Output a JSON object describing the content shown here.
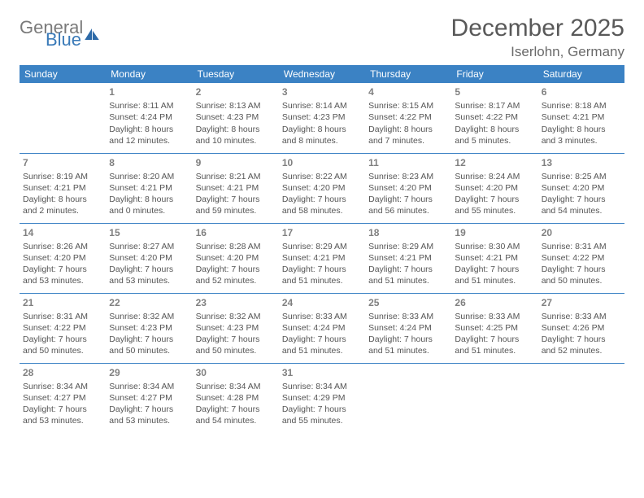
{
  "logo": {
    "text1": "General",
    "text2": "Blue"
  },
  "title": "December 2025",
  "location": "Iserlohn, Germany",
  "header_bg": "#3b82c4",
  "week_border": "#3b82c4",
  "days": [
    "Sunday",
    "Monday",
    "Tuesday",
    "Wednesday",
    "Thursday",
    "Friday",
    "Saturday"
  ],
  "weeks": [
    [
      null,
      {
        "n": "1",
        "sr": "8:11 AM",
        "ss": "4:24 PM",
        "dl": "8 hours and 12 minutes."
      },
      {
        "n": "2",
        "sr": "8:13 AM",
        "ss": "4:23 PM",
        "dl": "8 hours and 10 minutes."
      },
      {
        "n": "3",
        "sr": "8:14 AM",
        "ss": "4:23 PM",
        "dl": "8 hours and 8 minutes."
      },
      {
        "n": "4",
        "sr": "8:15 AM",
        "ss": "4:22 PM",
        "dl": "8 hours and 7 minutes."
      },
      {
        "n": "5",
        "sr": "8:17 AM",
        "ss": "4:22 PM",
        "dl": "8 hours and 5 minutes."
      },
      {
        "n": "6",
        "sr": "8:18 AM",
        "ss": "4:21 PM",
        "dl": "8 hours and 3 minutes."
      }
    ],
    [
      {
        "n": "7",
        "sr": "8:19 AM",
        "ss": "4:21 PM",
        "dl": "8 hours and 2 minutes."
      },
      {
        "n": "8",
        "sr": "8:20 AM",
        "ss": "4:21 PM",
        "dl": "8 hours and 0 minutes."
      },
      {
        "n": "9",
        "sr": "8:21 AM",
        "ss": "4:21 PM",
        "dl": "7 hours and 59 minutes."
      },
      {
        "n": "10",
        "sr": "8:22 AM",
        "ss": "4:20 PM",
        "dl": "7 hours and 58 minutes."
      },
      {
        "n": "11",
        "sr": "8:23 AM",
        "ss": "4:20 PM",
        "dl": "7 hours and 56 minutes."
      },
      {
        "n": "12",
        "sr": "8:24 AM",
        "ss": "4:20 PM",
        "dl": "7 hours and 55 minutes."
      },
      {
        "n": "13",
        "sr": "8:25 AM",
        "ss": "4:20 PM",
        "dl": "7 hours and 54 minutes."
      }
    ],
    [
      {
        "n": "14",
        "sr": "8:26 AM",
        "ss": "4:20 PM",
        "dl": "7 hours and 53 minutes."
      },
      {
        "n": "15",
        "sr": "8:27 AM",
        "ss": "4:20 PM",
        "dl": "7 hours and 53 minutes."
      },
      {
        "n": "16",
        "sr": "8:28 AM",
        "ss": "4:20 PM",
        "dl": "7 hours and 52 minutes."
      },
      {
        "n": "17",
        "sr": "8:29 AM",
        "ss": "4:21 PM",
        "dl": "7 hours and 51 minutes."
      },
      {
        "n": "18",
        "sr": "8:29 AM",
        "ss": "4:21 PM",
        "dl": "7 hours and 51 minutes."
      },
      {
        "n": "19",
        "sr": "8:30 AM",
        "ss": "4:21 PM",
        "dl": "7 hours and 51 minutes."
      },
      {
        "n": "20",
        "sr": "8:31 AM",
        "ss": "4:22 PM",
        "dl": "7 hours and 50 minutes."
      }
    ],
    [
      {
        "n": "21",
        "sr": "8:31 AM",
        "ss": "4:22 PM",
        "dl": "7 hours and 50 minutes."
      },
      {
        "n": "22",
        "sr": "8:32 AM",
        "ss": "4:23 PM",
        "dl": "7 hours and 50 minutes."
      },
      {
        "n": "23",
        "sr": "8:32 AM",
        "ss": "4:23 PM",
        "dl": "7 hours and 50 minutes."
      },
      {
        "n": "24",
        "sr": "8:33 AM",
        "ss": "4:24 PM",
        "dl": "7 hours and 51 minutes."
      },
      {
        "n": "25",
        "sr": "8:33 AM",
        "ss": "4:24 PM",
        "dl": "7 hours and 51 minutes."
      },
      {
        "n": "26",
        "sr": "8:33 AM",
        "ss": "4:25 PM",
        "dl": "7 hours and 51 minutes."
      },
      {
        "n": "27",
        "sr": "8:33 AM",
        "ss": "4:26 PM",
        "dl": "7 hours and 52 minutes."
      }
    ],
    [
      {
        "n": "28",
        "sr": "8:34 AM",
        "ss": "4:27 PM",
        "dl": "7 hours and 53 minutes."
      },
      {
        "n": "29",
        "sr": "8:34 AM",
        "ss": "4:27 PM",
        "dl": "7 hours and 53 minutes."
      },
      {
        "n": "30",
        "sr": "8:34 AM",
        "ss": "4:28 PM",
        "dl": "7 hours and 54 minutes."
      },
      {
        "n": "31",
        "sr": "8:34 AM",
        "ss": "4:29 PM",
        "dl": "7 hours and 55 minutes."
      },
      null,
      null,
      null
    ]
  ],
  "labels": {
    "sunrise": "Sunrise:",
    "sunset": "Sunset:",
    "daylight": "Daylight:"
  }
}
